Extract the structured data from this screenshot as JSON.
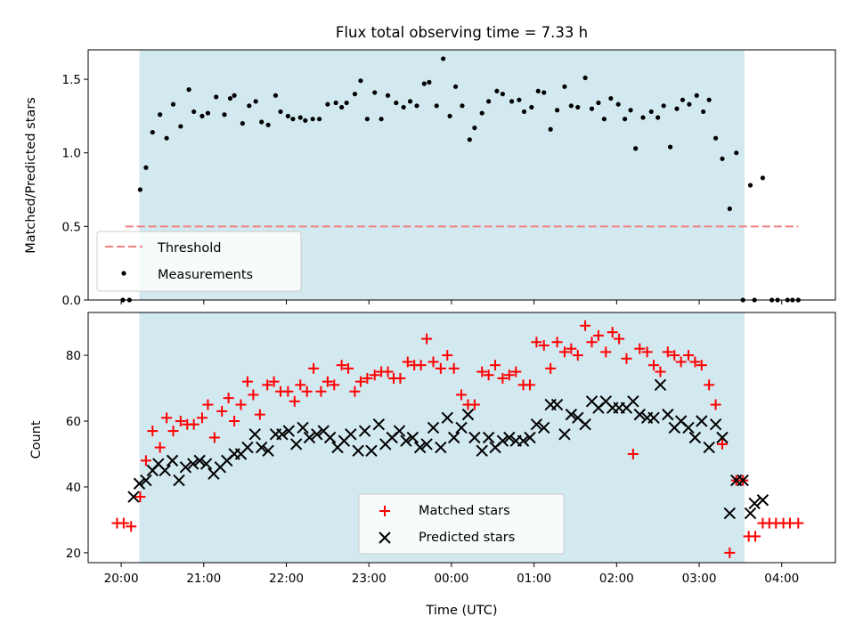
{
  "chart_data": {
    "type": "scatter",
    "title": "Flux total observing time = 7.33 h",
    "xlabel": "Time (UTC)",
    "x_ticks": [
      "20:00",
      "21:00",
      "22:00",
      "23:00",
      "00:00",
      "01:00",
      "02:00",
      "03:00",
      "04:00"
    ],
    "x_range_hours": [
      19.6,
      28.65
    ],
    "shaded_span_hours": [
      20.22,
      27.55
    ],
    "colors": {
      "shade": "#d3e9f0",
      "threshold": "#f08080",
      "measurements": "#000000",
      "matched": "#ff0000",
      "predicted": "#000000"
    },
    "panels": [
      {
        "ylabel": "Matched/Predicted stars",
        "ylim": [
          0,
          1.7
        ],
        "yticks": [
          0.0,
          0.5,
          1.0,
          1.5
        ],
        "yticks_text": [
          "0.0",
          "0.5",
          "1.0",
          "1.5"
        ],
        "legend": [
          "Threshold",
          "Measurements"
        ],
        "legend_position": "lower-left",
        "threshold": {
          "name": "Threshold",
          "value": 0.5,
          "x": [
            20.05,
            28.2
          ]
        },
        "measurements": {
          "name": "Measurements",
          "x": [
            20.02,
            20.1,
            20.23,
            20.3,
            20.38,
            20.47,
            20.55,
            20.63,
            20.72,
            20.82,
            20.88,
            20.98,
            21.05,
            21.15,
            21.25,
            21.32,
            21.37,
            21.47,
            21.55,
            21.63,
            21.7,
            21.78,
            21.87,
            21.93,
            22.02,
            22.08,
            22.17,
            22.23,
            22.32,
            22.4,
            22.5,
            22.6,
            22.67,
            22.73,
            22.83,
            22.9,
            22.98,
            23.07,
            23.15,
            23.23,
            23.33,
            23.42,
            23.5,
            23.58,
            23.67,
            23.73,
            23.82,
            23.9,
            23.98,
            24.05,
            24.13,
            24.22,
            24.28,
            24.37,
            24.45,
            24.55,
            24.62,
            24.73,
            24.82,
            24.88,
            24.97,
            25.05,
            25.12,
            25.2,
            25.28,
            25.37,
            25.45,
            25.53,
            25.62,
            25.7,
            25.78,
            25.85,
            25.93,
            26.02,
            26.1,
            26.17,
            26.23,
            26.32,
            26.42,
            26.5,
            26.57,
            26.65,
            26.73,
            26.8,
            26.88,
            26.97,
            27.05,
            27.12,
            27.2,
            27.28,
            27.37,
            27.45,
            27.53,
            27.62,
            27.67,
            27.77,
            27.88,
            27.95,
            28.07,
            28.13,
            28.2
          ],
          "y": [
            0.0,
            0.0,
            0.75,
            0.9,
            1.14,
            1.26,
            1.1,
            1.33,
            1.18,
            1.43,
            1.28,
            1.25,
            1.27,
            1.38,
            1.26,
            1.37,
            1.39,
            1.2,
            1.32,
            1.35,
            1.21,
            1.19,
            1.39,
            1.28,
            1.25,
            1.23,
            1.24,
            1.22,
            1.23,
            1.23,
            1.33,
            1.34,
            1.31,
            1.34,
            1.4,
            1.49,
            1.23,
            1.41,
            1.23,
            1.39,
            1.34,
            1.31,
            1.35,
            1.32,
            1.47,
            1.48,
            1.32,
            1.64,
            1.25,
            1.45,
            1.32,
            1.09,
            1.17,
            1.27,
            1.35,
            1.42,
            1.4,
            1.35,
            1.36,
            1.28,
            1.31,
            1.42,
            1.41,
            1.16,
            1.29,
            1.45,
            1.32,
            1.31,
            1.51,
            1.3,
            1.34,
            1.23,
            1.37,
            1.33,
            1.23,
            1.29,
            1.03,
            1.24,
            1.28,
            1.24,
            1.32,
            1.04,
            1.3,
            1.36,
            1.33,
            1.39,
            1.28,
            1.36,
            1.1,
            0.96,
            0.62,
            1.0,
            0.0,
            0.78,
            0.0,
            0.83,
            0.0,
            0.0,
            0.0,
            0.0,
            0.0
          ]
        }
      },
      {
        "ylabel": "Count",
        "ylim": [
          17,
          93
        ],
        "yticks": [
          20,
          40,
          60,
          80
        ],
        "yticks_text": [
          "20",
          "40",
          "60",
          "80"
        ],
        "legend": [
          "Matched stars",
          "Predicted stars"
        ],
        "legend_position": "lower-center",
        "series": [
          {
            "name": "Matched stars",
            "marker": "plus",
            "x": [
              19.95,
              20.03,
              20.12,
              20.23,
              20.3,
              20.38,
              20.47,
              20.55,
              20.63,
              20.72,
              20.8,
              20.88,
              20.98,
              21.05,
              21.13,
              21.22,
              21.3,
              21.37,
              21.45,
              21.53,
              21.6,
              21.68,
              21.77,
              21.85,
              21.93,
              22.02,
              22.1,
              22.17,
              22.25,
              22.33,
              22.42,
              22.5,
              22.58,
              22.67,
              22.75,
              22.83,
              22.9,
              22.98,
              23.07,
              23.15,
              23.23,
              23.3,
              23.38,
              23.47,
              23.55,
              23.63,
              23.7,
              23.78,
              23.87,
              23.95,
              24.03,
              24.12,
              24.2,
              24.28,
              24.37,
              24.45,
              24.53,
              24.62,
              24.7,
              24.78,
              24.87,
              24.95,
              25.03,
              25.12,
              25.2,
              25.28,
              25.37,
              25.45,
              25.53,
              25.62,
              25.7,
              25.78,
              25.87,
              25.95,
              26.03,
              26.12,
              26.2,
              26.28,
              26.37,
              26.45,
              26.53,
              26.62,
              26.7,
              26.78,
              26.87,
              26.95,
              27.03,
              27.12,
              27.2,
              27.28,
              27.37,
              27.45,
              27.53,
              27.6,
              27.68,
              27.77,
              27.85,
              27.93,
              28.02,
              28.1,
              28.2
            ],
            "y": [
              29,
              29,
              28,
              37,
              48,
              57,
              52,
              61,
              57,
              60,
              59,
              59,
              61,
              65,
              55,
              63,
              67,
              60,
              65,
              72,
              68,
              62,
              71,
              72,
              69,
              69,
              66,
              71,
              69,
              76,
              69,
              72,
              71,
              77,
              76,
              69,
              72,
              73,
              74,
              75,
              75,
              73,
              73,
              78,
              77,
              77,
              85,
              78,
              76,
              80,
              76,
              68,
              65,
              65,
              75,
              74,
              77,
              73,
              74,
              75,
              71,
              71,
              84,
              83,
              76,
              84,
              81,
              82,
              80,
              89,
              84,
              86,
              81,
              87,
              85,
              79,
              50,
              82,
              81,
              77,
              75,
              81,
              80,
              78,
              80,
              78,
              77,
              71,
              65,
              53,
              20,
              42,
              42,
              25,
              25,
              29,
              29,
              29,
              29,
              29,
              29
            ]
          },
          {
            "name": "Predicted stars",
            "marker": "x",
            "x": [
              20.15,
              20.22,
              20.3,
              20.38,
              20.45,
              20.53,
              20.62,
              20.7,
              20.78,
              20.87,
              20.95,
              21.03,
              21.12,
              21.2,
              21.28,
              21.37,
              21.45,
              21.53,
              21.62,
              21.7,
              21.78,
              21.87,
              21.95,
              22.03,
              22.12,
              22.2,
              22.28,
              22.37,
              22.45,
              22.53,
              22.62,
              22.7,
              22.78,
              22.87,
              22.95,
              23.03,
              23.12,
              23.2,
              23.28,
              23.37,
              23.45,
              23.53,
              23.62,
              23.7,
              23.78,
              23.87,
              23.95,
              24.03,
              24.12,
              24.2,
              24.28,
              24.37,
              24.45,
              24.53,
              24.62,
              24.7,
              24.78,
              24.87,
              24.95,
              25.03,
              25.12,
              25.2,
              25.28,
              25.37,
              25.45,
              25.53,
              25.62,
              25.7,
              25.78,
              25.87,
              25.95,
              26.03,
              26.12,
              26.2,
              26.28,
              26.37,
              26.45,
              26.53,
              26.62,
              26.7,
              26.78,
              26.87,
              26.95,
              27.03,
              27.12,
              27.2,
              27.28,
              27.37,
              27.45,
              27.53,
              27.62,
              27.67,
              27.77
            ],
            "y": [
              37,
              41,
              42,
              45,
              47,
              45,
              48,
              42,
              46,
              47,
              48,
              47,
              44,
              46,
              48,
              50,
              50,
              52,
              56,
              52,
              51,
              56,
              56,
              57,
              53,
              58,
              55,
              56,
              57,
              55,
              52,
              54,
              56,
              51,
              57,
              51,
              59,
              53,
              55,
              57,
              54,
              55,
              52,
              53,
              58,
              52,
              61,
              55,
              58,
              62,
              55,
              51,
              55,
              52,
              54,
              55,
              54,
              54,
              55,
              59,
              58,
              65,
              65,
              56,
              62,
              61,
              59,
              66,
              64,
              66,
              64,
              64,
              64,
              66,
              62,
              61,
              61,
              71,
              62,
              58,
              60,
              58,
              55,
              60,
              52,
              59,
              55,
              32,
              42,
              42,
              32,
              35,
              36
            ]
          }
        ]
      }
    ]
  }
}
